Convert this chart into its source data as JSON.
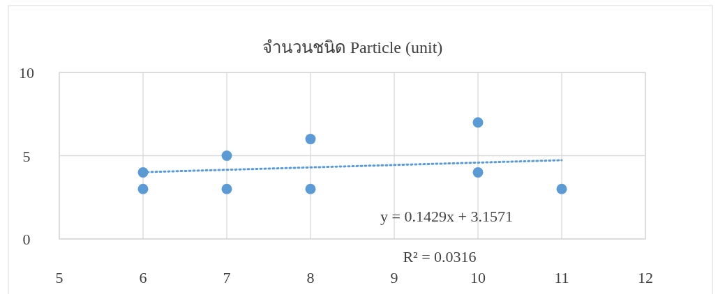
{
  "chart_data": {
    "type": "scatter",
    "title": "จำนวนชนิด Particle (unit)",
    "xlim": [
      5,
      12
    ],
    "xticks": [
      5,
      6,
      7,
      8,
      9,
      10,
      11,
      12
    ],
    "ylim": [
      0,
      10
    ],
    "yticks": [
      0,
      5,
      10
    ],
    "grid": true,
    "marker": "circle",
    "series": [
      {
        "type": "scatter",
        "color": "#5b9bd5",
        "x": [
          6,
          6,
          7,
          7,
          8,
          8,
          10,
          10,
          11
        ],
        "values": [
          4,
          3,
          5,
          3,
          6,
          3,
          7,
          4,
          3
        ]
      },
      {
        "type": "line",
        "color": "#5b9bd5",
        "x": [
          6,
          11
        ],
        "values": [
          4.01,
          4.73
        ],
        "line_style": "dotted",
        "marker": "none"
      }
    ],
    "annotations": [
      "y = 0.1429x + 3.1571",
      "R² = 0.0316"
    ]
  }
}
